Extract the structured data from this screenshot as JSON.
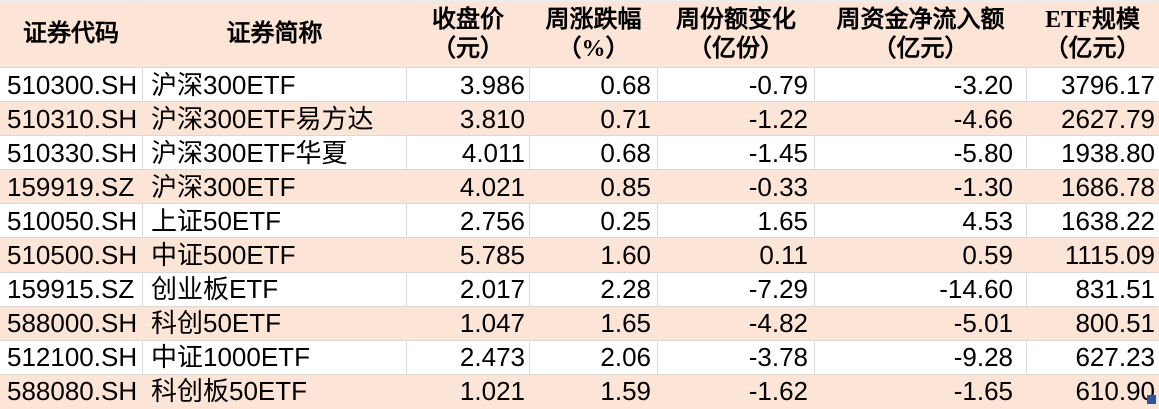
{
  "colors": {
    "header_bg": "#fce4d6",
    "row_alt_bg": "#fce4d6",
    "gridline": "#d9d9d9",
    "selection_handle": "#2f5597",
    "text": "#000000"
  },
  "table": {
    "headers": [
      {
        "line1": "证券代码",
        "line2": ""
      },
      {
        "line1": "证券简称",
        "line2": ""
      },
      {
        "line1": "收盘价",
        "line2": "（元）"
      },
      {
        "line1": "周涨跌幅",
        "line2": "（%）"
      },
      {
        "line1": "周份额变化",
        "line2": "（亿份）"
      },
      {
        "line1": "周资金净流入额",
        "line2": "（亿元）"
      },
      {
        "line1": "ETF规模",
        "line2": "（亿元）"
      }
    ],
    "rows": [
      {
        "code": "510300.SH",
        "name": "沪深300ETF",
        "close": "3.986",
        "pct_change": "0.68",
        "share_change": "-0.79",
        "net_inflow": "-3.20",
        "scale": "3796.17"
      },
      {
        "code": "510310.SH",
        "name": "沪深300ETF易方达",
        "close": "3.810",
        "pct_change": "0.71",
        "share_change": "-1.22",
        "net_inflow": "-4.66",
        "scale": "2627.79"
      },
      {
        "code": "510330.SH",
        "name": "沪深300ETF华夏",
        "close": "4.011",
        "pct_change": "0.68",
        "share_change": "-1.45",
        "net_inflow": "-5.80",
        "scale": "1938.80"
      },
      {
        "code": "159919.SZ",
        "name": "沪深300ETF",
        "close": "4.021",
        "pct_change": "0.85",
        "share_change": "-0.33",
        "net_inflow": "-1.30",
        "scale": "1686.78"
      },
      {
        "code": "510050.SH",
        "name": "上证50ETF",
        "close": "2.756",
        "pct_change": "0.25",
        "share_change": "1.65",
        "net_inflow": "4.53",
        "scale": "1638.22"
      },
      {
        "code": "510500.SH",
        "name": "中证500ETF",
        "close": "5.785",
        "pct_change": "1.60",
        "share_change": "0.11",
        "net_inflow": "0.59",
        "scale": "1115.09"
      },
      {
        "code": "159915.SZ",
        "name": "创业板ETF",
        "close": "2.017",
        "pct_change": "2.28",
        "share_change": "-7.29",
        "net_inflow": "-14.60",
        "scale": "831.51"
      },
      {
        "code": "588000.SH",
        "name": "科创50ETF",
        "close": "1.047",
        "pct_change": "1.65",
        "share_change": "-4.82",
        "net_inflow": "-5.01",
        "scale": "800.51"
      },
      {
        "code": "512100.SH",
        "name": "中证1000ETF",
        "close": "2.473",
        "pct_change": "2.06",
        "share_change": "-3.78",
        "net_inflow": "-9.28",
        "scale": "627.23"
      },
      {
        "code": "588080.SH",
        "name": "科创板50ETF",
        "close": "1.021",
        "pct_change": "1.59",
        "share_change": "-1.62",
        "net_inflow": "-1.65",
        "scale": "610.90"
      }
    ]
  }
}
